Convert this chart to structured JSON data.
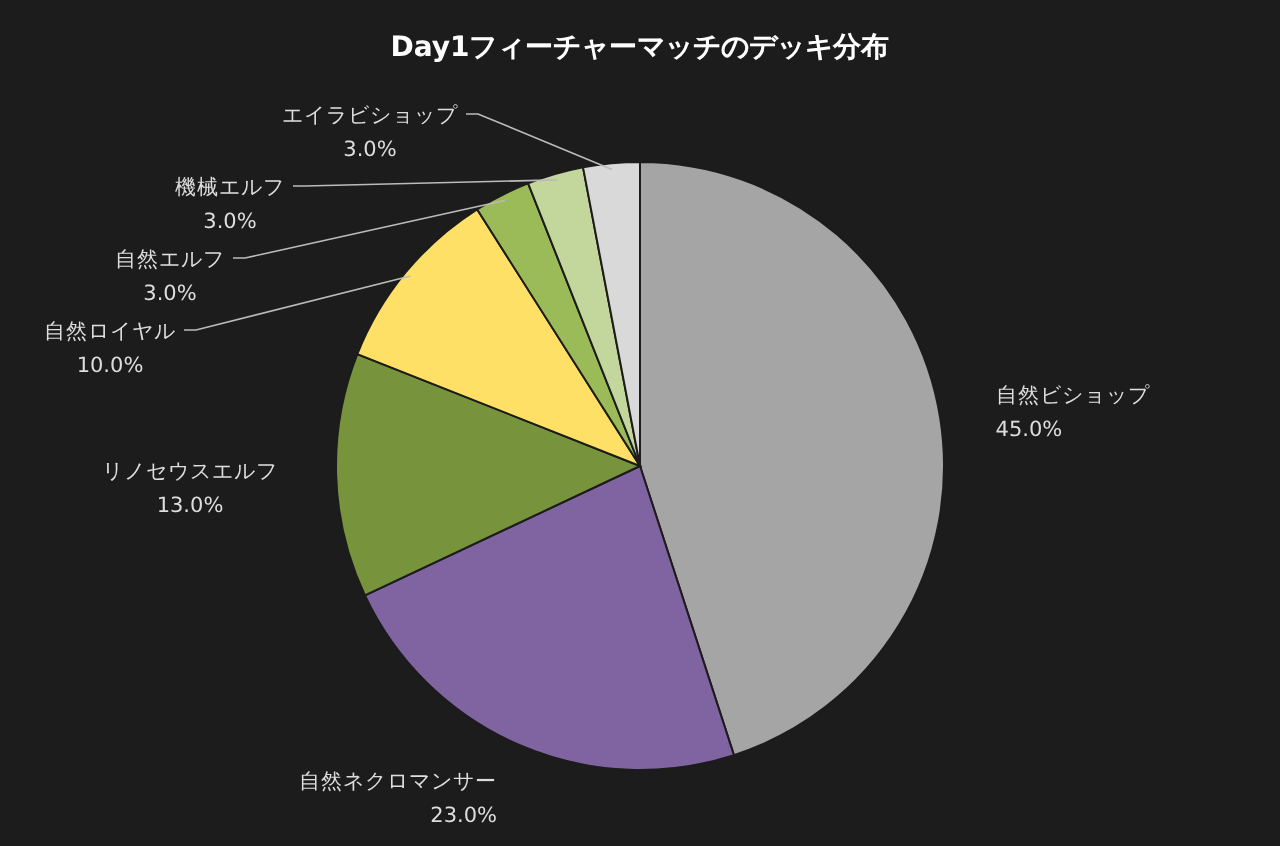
{
  "chart_data": {
    "type": "pie",
    "title": "Day1フィーチャーマッチのデッキ分布",
    "categories": [
      "自然ビショップ",
      "自然ネクロマンサー",
      "リノセウスエルフ",
      "自然ロイヤル",
      "自然エルフ",
      "機械エルフ",
      "エイラビショップ"
    ],
    "values": [
      45,
      23,
      13,
      10,
      3,
      3,
      3
    ],
    "value_labels": [
      "45.0%",
      "23.0%",
      "13.0%",
      "10.0%",
      "3.0%",
      "3.0%",
      "3.0%"
    ],
    "colors": [
      "#a5a5a5",
      "#8064a2",
      "#77933c",
      "#ffe066",
      "#9bbb59",
      "#c3d69b",
      "#d9d9d9"
    ]
  }
}
